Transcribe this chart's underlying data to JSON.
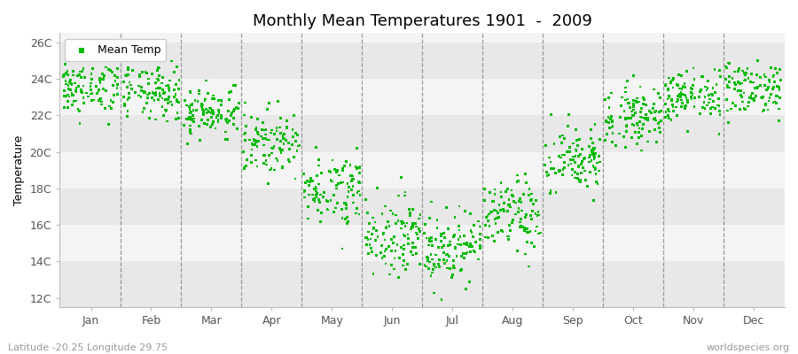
{
  "title": "Monthly Mean Temperatures 1901  -  2009",
  "ylabel": "Temperature",
  "xlabel_months": [
    "Jan",
    "Feb",
    "Mar",
    "Apr",
    "May",
    "Jun",
    "Jul",
    "Aug",
    "Sep",
    "Oct",
    "Nov",
    "Dec"
  ],
  "ytick_labels": [
    "12C",
    "14C",
    "16C",
    "18C",
    "20C",
    "22C",
    "24C",
    "26C"
  ],
  "ytick_values": [
    12,
    14,
    16,
    18,
    20,
    22,
    24,
    26
  ],
  "ylim": [
    11.5,
    26.5
  ],
  "dot_color": "#00bb00",
  "background_color": "#ffffff",
  "plot_bg": "#f0f0f0",
  "band_colors": [
    "#e8e8e8",
    "#f4f4f4"
  ],
  "legend_label": "Mean Temp",
  "footer_left": "Latitude -20.25 Longitude 29.75",
  "footer_right": "worldspecies.org",
  "title_fontsize": 13,
  "axis_fontsize": 9,
  "legend_fontsize": 9,
  "footer_fontsize": 8,
  "monthly_means": [
    23.5,
    23.2,
    22.2,
    20.5,
    18.0,
    15.5,
    14.8,
    16.5,
    19.5,
    22.0,
    23.0,
    23.5
  ],
  "monthly_stds": [
    0.75,
    0.75,
    0.7,
    0.85,
    0.95,
    1.05,
    1.0,
    1.0,
    0.95,
    0.8,
    0.72,
    0.75
  ],
  "n_years": 109,
  "seed": 42
}
